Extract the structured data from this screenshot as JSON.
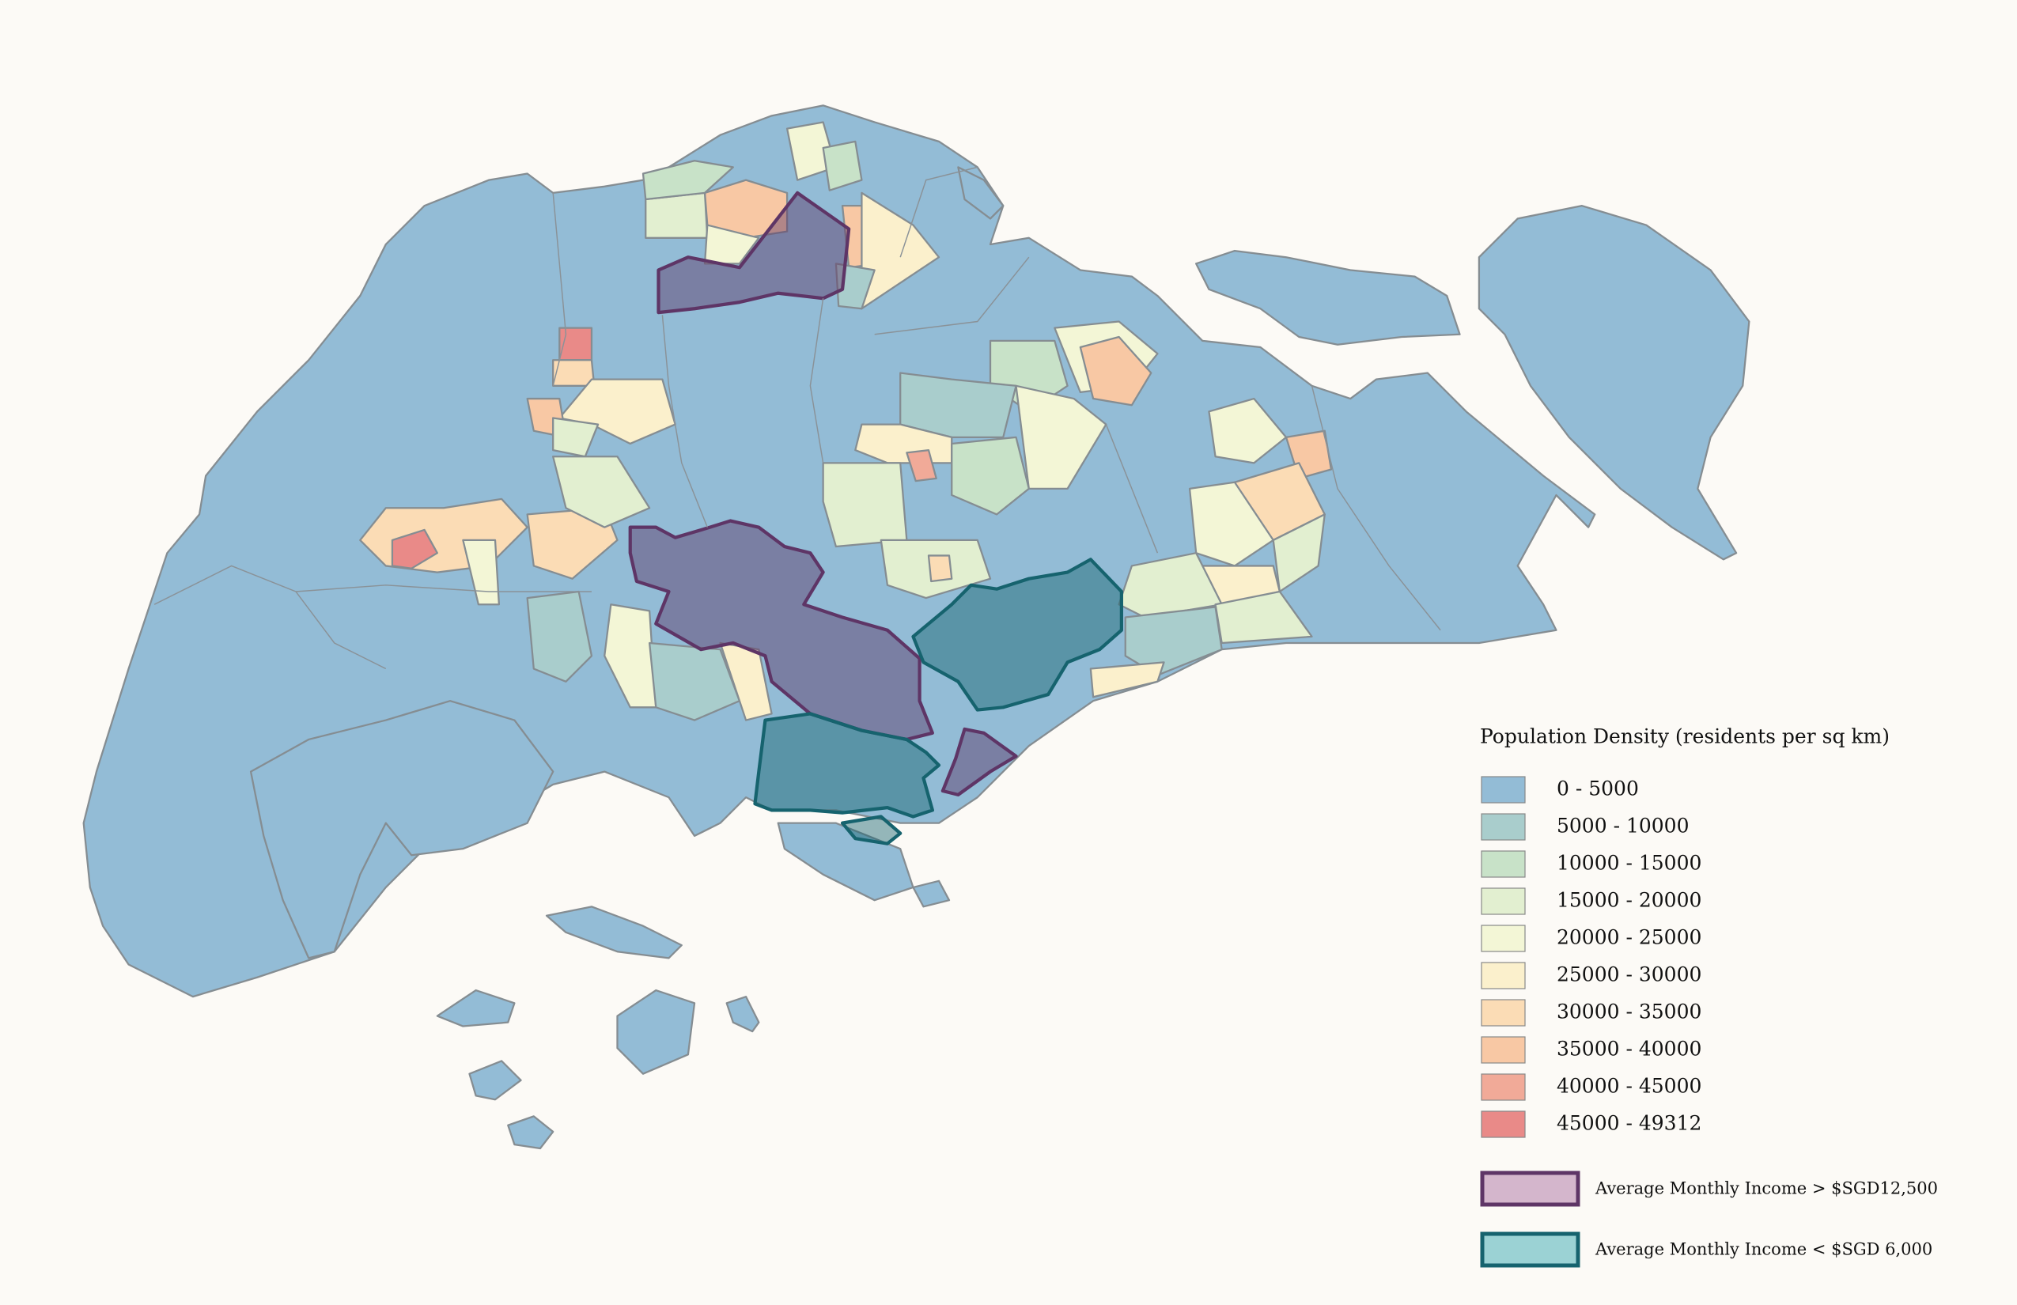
{
  "legend": {
    "title": "Population Density (residents per sq km)",
    "items": [
      {
        "label": "0 - 5000",
        "color": "#93bcd6"
      },
      {
        "label": "5000 - 10000",
        "color": "#a9cdcc"
      },
      {
        "label": "10000 - 15000",
        "color": "#c8e2c8"
      },
      {
        "label": "15000 - 20000",
        "color": "#e2efd0"
      },
      {
        "label": "20000 - 25000",
        "color": "#f3f6d6"
      },
      {
        "label": "25000 - 30000",
        "color": "#fbf0cc"
      },
      {
        "label": "30000 - 35000",
        "color": "#fbdcb5"
      },
      {
        "label": "35000 - 40000",
        "color": "#f8c8a4"
      },
      {
        "label": "40000 - 45000",
        "color": "#f1aa98"
      },
      {
        "label": "45000 - 49312",
        "color": "#e98a88"
      }
    ],
    "income": [
      {
        "label": "Average Monthly Income > $SGD12,500",
        "fill": "#d4b6cc",
        "stroke": "#5e3566"
      },
      {
        "label": "Average Monthly Income < $SGD 6,000",
        "fill": "#9bd2d4",
        "stroke": "#16636e"
      }
    ]
  }
}
